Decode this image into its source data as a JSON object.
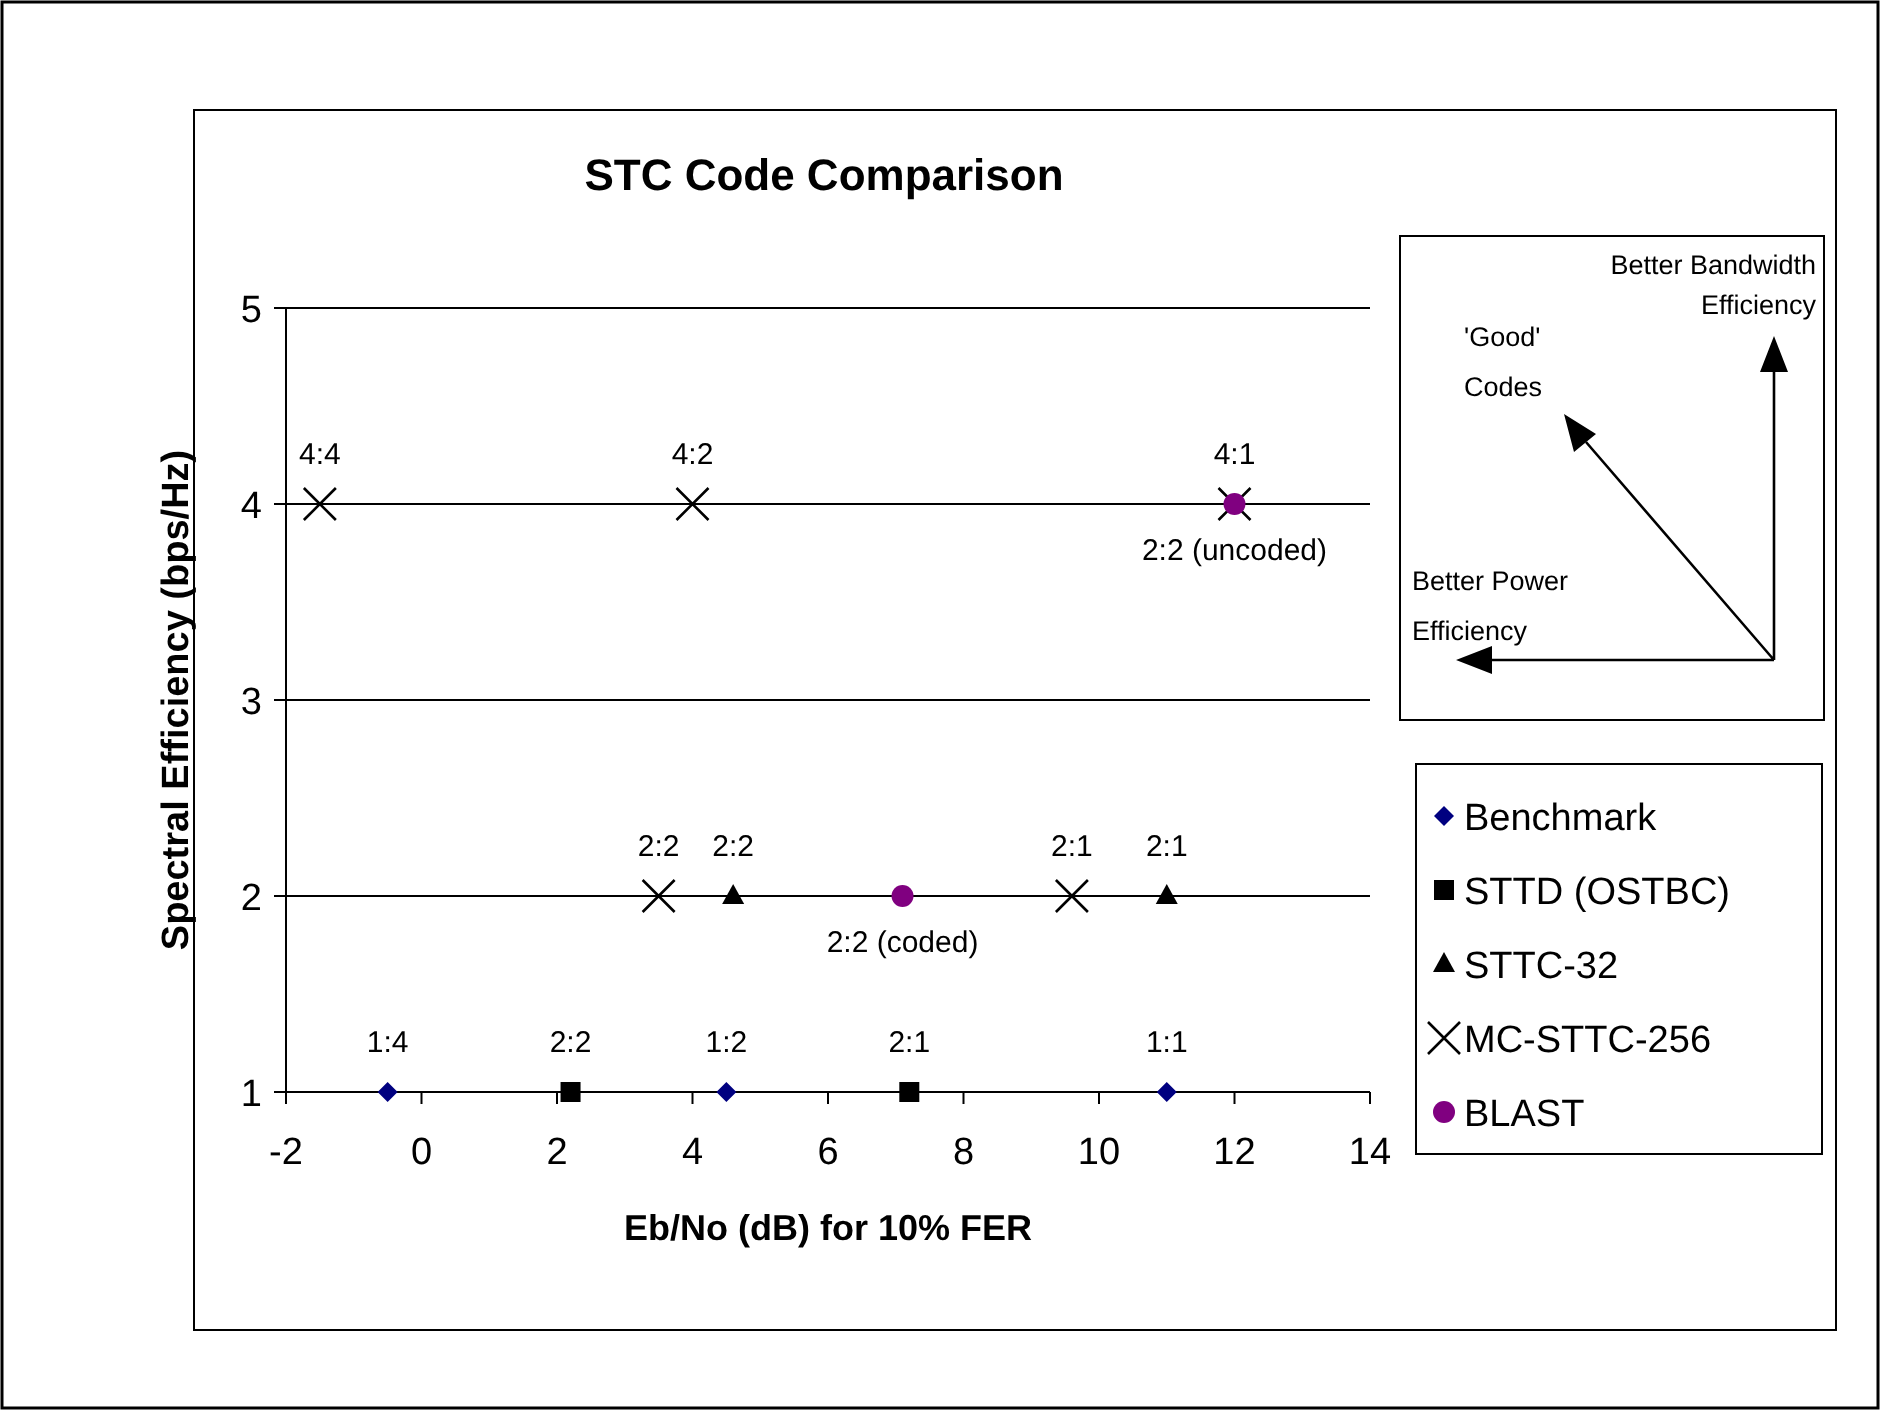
{
  "chart_data": {
    "type": "scatter",
    "title": "STC Code Comparison",
    "xlabel": "Eb/No (dB) for 10% FER",
    "ylabel": "Spectral Efficiency (bps/Hz)",
    "xlim": [
      -2,
      14
    ],
    "xticks": [
      -2,
      0,
      2,
      4,
      6,
      8,
      10,
      12,
      14
    ],
    "ylim": [
      1,
      5
    ],
    "yticks": [
      1,
      2,
      3,
      4,
      5
    ],
    "grid": "y",
    "legend": "right",
    "series": [
      {
        "name": "Benchmark",
        "color": "#000080",
        "marker": "diamond",
        "x": [
          -0.5,
          4.5,
          11
        ],
        "values": [
          1,
          1,
          1
        ]
      },
      {
        "name": "STTD (OSTBC)",
        "color": "#000000",
        "marker": "square",
        "x": [
          2.2,
          7.2
        ],
        "values": [
          1,
          1
        ]
      },
      {
        "name": "STTC-32",
        "color": "#000000",
        "marker": "triangle",
        "x": [
          4.6,
          11
        ],
        "values": [
          2,
          2
        ]
      },
      {
        "name": "MC-STTC-256",
        "color": "#000000",
        "marker": "cross",
        "x": [
          -1.5,
          4,
          12,
          3.5,
          9.6
        ],
        "values": [
          4,
          4,
          4,
          2,
          2
        ]
      },
      {
        "name": "BLAST",
        "color": "#800080",
        "marker": "circle",
        "x": [
          7.1,
          12
        ],
        "values": [
          2,
          4
        ]
      }
    ],
    "annotations": [
      {
        "text": "1:4",
        "x": -0.5,
        "y": 1
      },
      {
        "text": "1:2",
        "x": 4.5,
        "y": 1
      },
      {
        "text": "1:1",
        "x": 11,
        "y": 1
      },
      {
        "text": "2:2",
        "x": 2.2,
        "y": 1
      },
      {
        "text": "2:1",
        "x": 7.2,
        "y": 1
      },
      {
        "text": "2:2",
        "x": 4.6,
        "y": 2
      },
      {
        "text": "2:1",
        "x": 11,
        "y": 2
      },
      {
        "text": "4:4",
        "x": -1.5,
        "y": 4
      },
      {
        "text": "4:2",
        "x": 4,
        "y": 4
      },
      {
        "text": "4:1",
        "x": 12,
        "y": 4
      },
      {
        "text": "2:2",
        "x": 3.5,
        "y": 2
      },
      {
        "text": "2:1",
        "x": 9.6,
        "y": 2
      },
      {
        "text": "2:2 (coded)",
        "x": 7.1,
        "y": 2
      },
      {
        "text": "2:2 (uncoded)",
        "x": 12,
        "y": 4
      },
      "Better Bandwidth Efficiency",
      "'Good' Codes",
      "Better Power Efficiency"
    ]
  }
}
